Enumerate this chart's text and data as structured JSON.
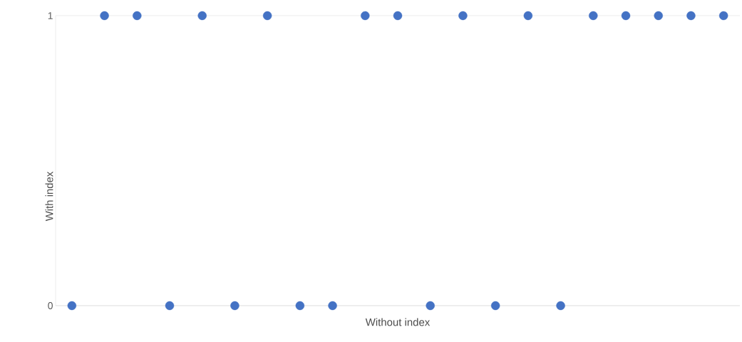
{
  "chart_data": {
    "type": "scatter",
    "xlabel": "Without index",
    "ylabel": "With index",
    "categories": [
      null,
      null,
      null,
      null,
      null,
      null,
      null,
      null,
      null,
      null,
      null,
      null,
      null,
      null,
      null,
      null,
      null,
      null,
      null,
      null,
      null
    ],
    "values": [
      0,
      1,
      1,
      0,
      1,
      0,
      1,
      0,
      0,
      1,
      1,
      0,
      1,
      0,
      1,
      0,
      1,
      1,
      1,
      1,
      1
    ],
    "color": "#4472c4",
    "ylim": [
      0,
      1
    ],
    "yticks": [
      0,
      1
    ],
    "grid": "y",
    "marker": "circle",
    "tick_labels": "y"
  }
}
